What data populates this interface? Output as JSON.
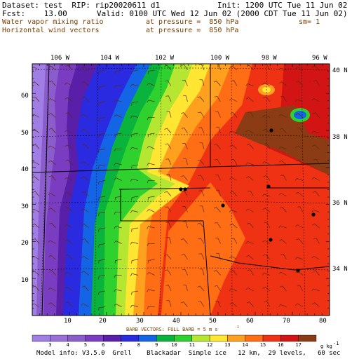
{
  "header": {
    "dataset": "Dataset: test  RIP: rip20020611 d1",
    "init": "Init: 1200 UTC Tue 11 Jun 02",
    "fcst": "Fcst:    13.00",
    "valid": "Valid: 0100 UTC Wed 12 Jun 02 (2000 CDT Tue 11 Jun 02)",
    "field1": "Water vapor mixing ratio",
    "pressure1": "at pressure =  850 hPa",
    "sm": "sm= 1",
    "field2": "Horizontal wind vectors",
    "pressure2": "at pressure =  850 hPa"
  },
  "map": {
    "lon_labels": [
      "106 W",
      "104 W",
      "102 W",
      "100 W",
      "98 W",
      "96 W"
    ],
    "lat_labels": [
      "40 N",
      "38 N",
      "36 N",
      "34 N"
    ],
    "x_ticks": [
      "10",
      "20",
      "30",
      "40",
      "50",
      "60",
      "70",
      "80"
    ],
    "y_ticks": [
      "10",
      "20",
      "30",
      "40",
      "50",
      "60"
    ],
    "grid_x_range": [
      1,
      82
    ],
    "grid_y_range": [
      1,
      67
    ]
  },
  "colorbar": {
    "title": "BARB VECTORS:  FULL BARB = 5 m s",
    "title_sup": "-1",
    "labels": [
      "3",
      "4",
      "5",
      "6",
      "7",
      "8",
      "9",
      "10",
      "11",
      "12",
      "13",
      "14",
      "15",
      "16",
      "17"
    ],
    "unit": "g kg",
    "unit_sup": "-1",
    "colors": [
      "#a07ee6",
      "#9a6fd8",
      "#8b5ccc",
      "#7a3cc0",
      "#5a1fa8",
      "#2a2ae0",
      "#1464e6",
      "#0ab33c",
      "#2ed12e",
      "#b4e632",
      "#ffe632",
      "#ffa01e",
      "#ff6e14",
      "#f03214",
      "#d21414",
      "#8c3c14"
    ]
  },
  "footer": "Model info: V3.5.0  Grell    Blackadar  Simple ice   12 km,  29 levels,   60 sec"
}
